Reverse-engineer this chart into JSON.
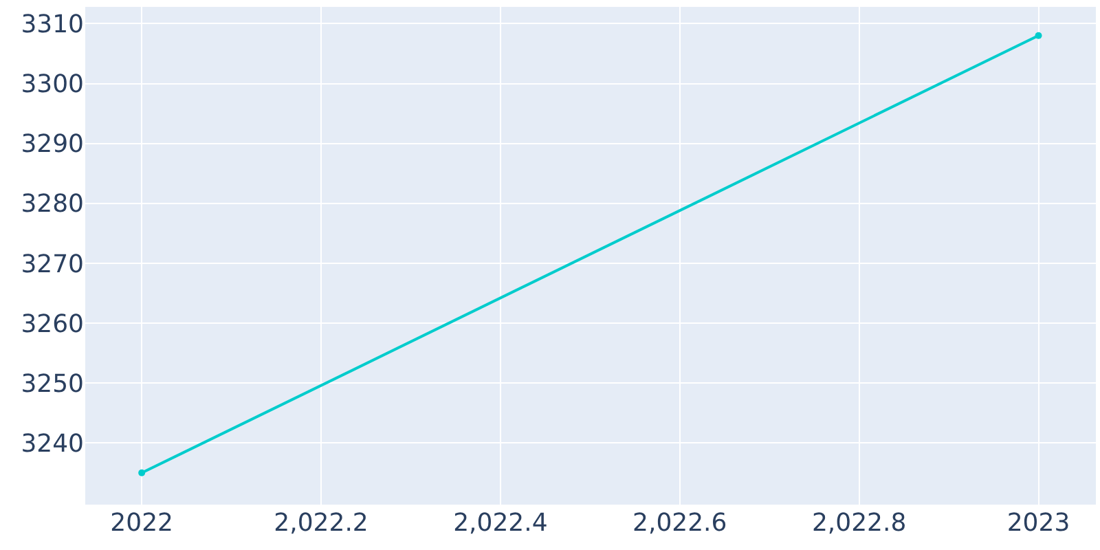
{
  "chart_data": {
    "type": "line",
    "x": [
      2022,
      2023
    ],
    "series": [
      {
        "color": "#00cccc",
        "values": [
          3235,
          3308
        ]
      }
    ],
    "xlim": [
      2021.937,
      2023.064
    ],
    "ylim": [
      3229.7,
      3312.8
    ],
    "xticks": [
      2022,
      {
        "value": 2022.2,
        "label": "2,022.2"
      },
      {
        "value": 2022.4,
        "label": "2,022.4"
      },
      {
        "value": 2022.6,
        "label": "2,022.6"
      },
      {
        "value": 2022.8,
        "label": "2,022.8"
      },
      2023
    ],
    "yticks": [
      3240,
      3250,
      3260,
      3270,
      3280,
      3290,
      3300,
      3310
    ],
    "grid": true,
    "marker": "circle",
    "line_style": "solid",
    "legend": false
  }
}
